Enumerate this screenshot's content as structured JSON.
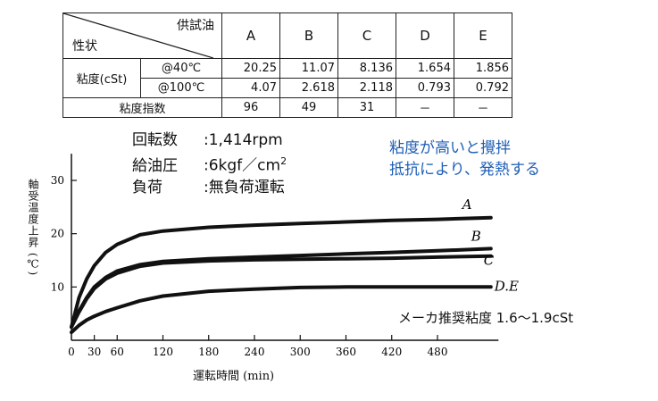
{
  "table": {
    "corner_top": "供試油",
    "corner_bottom": "性状",
    "oils": [
      "A",
      "B",
      "C",
      "D",
      "E"
    ],
    "viscosity_label": "粘度(cSt)",
    "rows": [
      {
        "cond": "@40℃",
        "values": [
          "20.25",
          "11.07",
          "8.136",
          "1.654",
          "1.856"
        ]
      },
      {
        "cond": "@100℃",
        "values": [
          "4.07",
          "2.618",
          "2.118",
          "0.793",
          "0.792"
        ]
      }
    ],
    "vi_label": "粘度指数",
    "vi_values": [
      "96",
      "49",
      "31",
      "－",
      "－"
    ]
  },
  "conditions": {
    "speed_label": "回転数",
    "speed_value": ":1,414rpm",
    "pressure_label": "給油圧",
    "pressure_value": ":6kgf／cm",
    "pressure_sup": "2",
    "load_label": "負荷",
    "load_value": ":無負荷運転"
  },
  "note": {
    "line1": "粘度が高いと攪拌",
    "line2": "抵抗により、発熱する"
  },
  "recommendation": "メーカ推奨粘度 1.6～1.9cSt",
  "chart_data": {
    "type": "line",
    "xlabel": "運転時間 (min)",
    "ylabel": "軸受温度上昇 (℃)",
    "x_ticks": [
      "0",
      "30",
      "60",
      "120",
      "180",
      "240",
      "300",
      "360",
      "420",
      "480"
    ],
    "y_ticks": [
      "10",
      "20",
      "30"
    ],
    "xlim": [
      0,
      560
    ],
    "ylim": [
      0,
      35
    ],
    "x": [
      0,
      10,
      20,
      30,
      45,
      60,
      90,
      120,
      180,
      240,
      300,
      360,
      420,
      480,
      550
    ],
    "series": [
      {
        "name": "A",
        "values": [
          2.5,
          8,
          11.5,
          14,
          16.5,
          18,
          19.8,
          20.5,
          21.2,
          21.6,
          21.9,
          22.2,
          22.5,
          22.7,
          23
        ]
      },
      {
        "name": "B",
        "values": [
          2.5,
          5.5,
          8,
          10,
          11.8,
          13,
          14.2,
          14.8,
          15.3,
          15.6,
          15.9,
          16.2,
          16.5,
          16.8,
          17.2
        ]
      },
      {
        "name": "C",
        "values": [
          2.5,
          5.3,
          7.8,
          9.7,
          11.5,
          12.6,
          13.9,
          14.5,
          14.9,
          15.1,
          15.2,
          15.3,
          15.4,
          15.6,
          15.8
        ]
      },
      {
        "name": "D.E",
        "values": [
          1.5,
          2.8,
          3.8,
          4.5,
          5.4,
          6.1,
          7.4,
          8.3,
          9.2,
          9.6,
          9.9,
          10,
          10,
          10,
          10
        ]
      }
    ]
  }
}
